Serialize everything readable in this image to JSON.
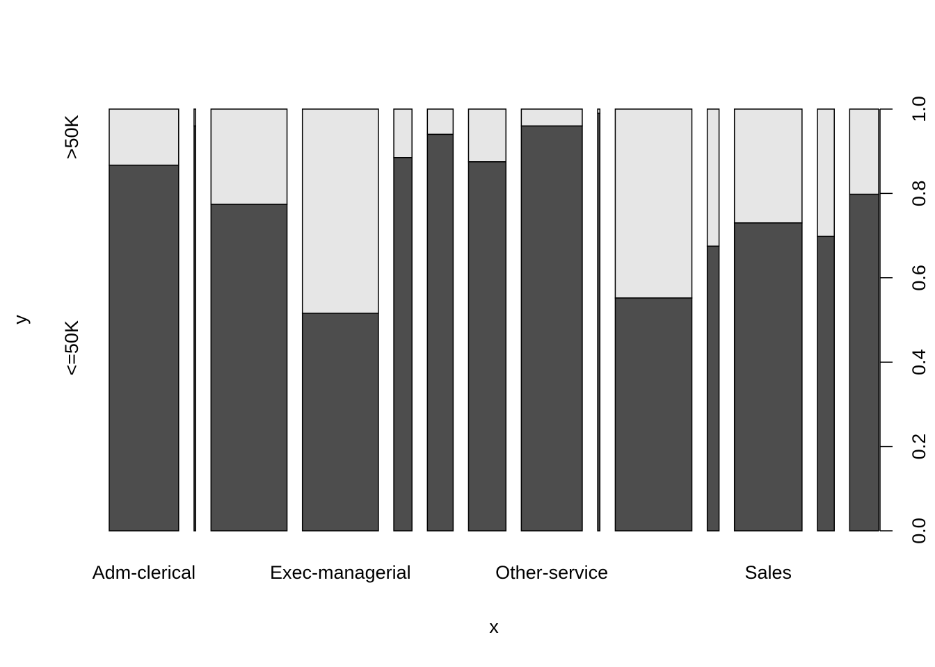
{
  "chart_data": {
    "type": "spineplot",
    "xlabel": "x",
    "ylabel": "y",
    "x_tick_labels": [
      "Adm-clerical",
      "Exec-managerial",
      "Other-service",
      "Sales"
    ],
    "y_category_labels": [
      "<=50K",
      ">50K"
    ],
    "right_axis_ticks": [
      "0.0",
      "0.2",
      "0.4",
      "0.6",
      "0.8",
      "1.0"
    ],
    "ylim": [
      0,
      1
    ],
    "colors": {
      "lower": "#4d4d4d",
      "upper": "#e6e6e6"
    },
    "categories": [
      "Adm-clerical",
      "",
      "",
      "Exec-managerial",
      "",
      "",
      "",
      "Other-service",
      "",
      "",
      "",
      "Sales",
      "",
      ""
    ],
    "widths": [
      0.1054,
      0.0024,
      0.1154,
      0.1154,
      0.0276,
      0.0391,
      0.0568,
      0.0925,
      0.0034,
      0.1163,
      0.0179,
      0.1026,
      0.0256,
      0.044
    ],
    "series": [
      {
        "name": "<=50K",
        "values": [
          0.867,
          0.96,
          0.774,
          0.516,
          0.885,
          0.94,
          0.875,
          0.96,
          0.99,
          0.552,
          0.675,
          0.73,
          0.698,
          0.798
        ]
      },
      {
        "name": ">50K",
        "values": [
          0.133,
          0.04,
          0.226,
          0.484,
          0.115,
          0.06,
          0.125,
          0.04,
          0.01,
          0.448,
          0.325,
          0.27,
          0.302,
          0.202
        ]
      }
    ]
  }
}
